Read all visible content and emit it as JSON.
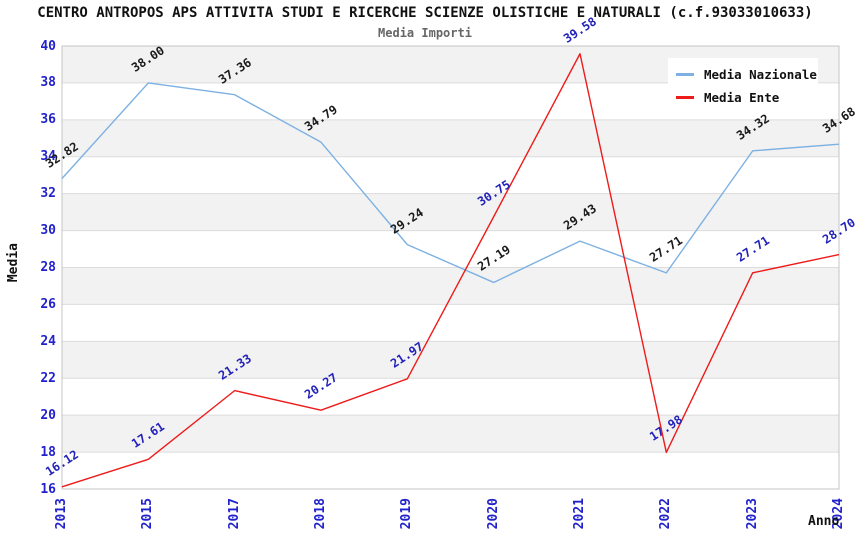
{
  "title": "CENTRO ANTROPOS APS ATTIVITA STUDI E RICERCHE SCIENZE OLISTICHE E NATURALI (c.f.93033010633)",
  "subtitle": "Media Importi",
  "chart_data": {
    "type": "line",
    "title": "CENTRO ANTROPOS APS ATTIVITA STUDI E RICERCHE SCIENZE OLISTICHE E NATURALI (c.f.93033010633)",
    "subtitle": "Media Importi",
    "xlabel": "Anno",
    "ylabel": "Media",
    "categories": [
      "2013",
      "2015",
      "2017",
      "2018",
      "2019",
      "2020",
      "2021",
      "2022",
      "2023",
      "2024"
    ],
    "series": [
      {
        "name": "Media Nazionale",
        "color": "#7db1e3",
        "label_color": "#1a1a1a",
        "values": [
          32.82,
          38.0,
          37.36,
          34.79,
          29.24,
          27.19,
          29.43,
          27.71,
          34.32,
          34.68
        ]
      },
      {
        "name": "Media Ente",
        "color": "#ee1b1b",
        "label_color": "#2222bb",
        "values": [
          16.12,
          17.61,
          21.33,
          20.27,
          21.97,
          30.75,
          39.58,
          17.98,
          27.71,
          28.7
        ]
      }
    ],
    "ylim": [
      16,
      40
    ],
    "ytick_step": 2,
    "grid": "horizontal, zebra bands every 2 units, gray bands starting at 18-20",
    "legend_position": "top-right",
    "colors": {
      "tick_label": "#2222cc",
      "band_gray": "#f2f2f2",
      "grid_line": "#dcdcdc",
      "plot_border": "#c4c4c4",
      "subtitle": "#666666"
    }
  }
}
